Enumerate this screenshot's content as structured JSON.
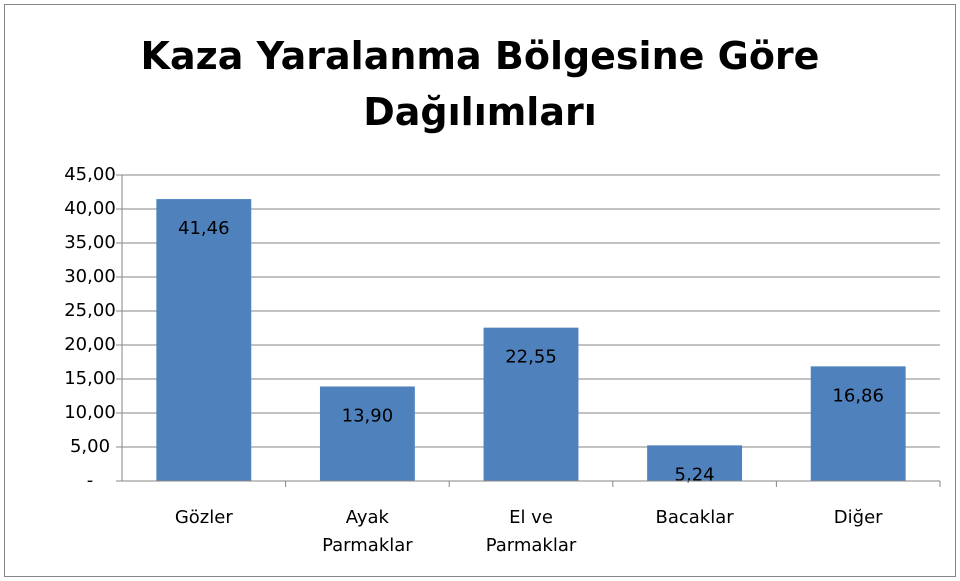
{
  "chart_data": {
    "type": "bar",
    "title": "Kaza Yaralanma Bölgesine Göre Dağılımları",
    "categories": [
      "Gözler",
      "Ayak Parmaklar",
      "El ve Parmaklar",
      "Bacaklar",
      "Diğer"
    ],
    "values": [
      41.46,
      13.9,
      22.55,
      5.24,
      16.86
    ],
    "value_labels": [
      "41,46",
      "13,90",
      "22,55",
      "5,24",
      "16,86"
    ],
    "color": "#4f81bd",
    "ylim": [
      0,
      45
    ],
    "yticks": [
      {
        "value": 0,
        "label": "-"
      },
      {
        "value": 5,
        "label": "5,00"
      },
      {
        "value": 10,
        "label": "10,00"
      },
      {
        "value": 15,
        "label": "15,00"
      },
      {
        "value": 20,
        "label": "20,00"
      },
      {
        "value": 25,
        "label": "25,00"
      },
      {
        "value": 30,
        "label": "30,00"
      },
      {
        "value": 35,
        "label": "35,00"
      },
      {
        "value": 40,
        "label": "40,00"
      },
      {
        "value": 45,
        "label": "45,00"
      }
    ],
    "grid": true
  }
}
